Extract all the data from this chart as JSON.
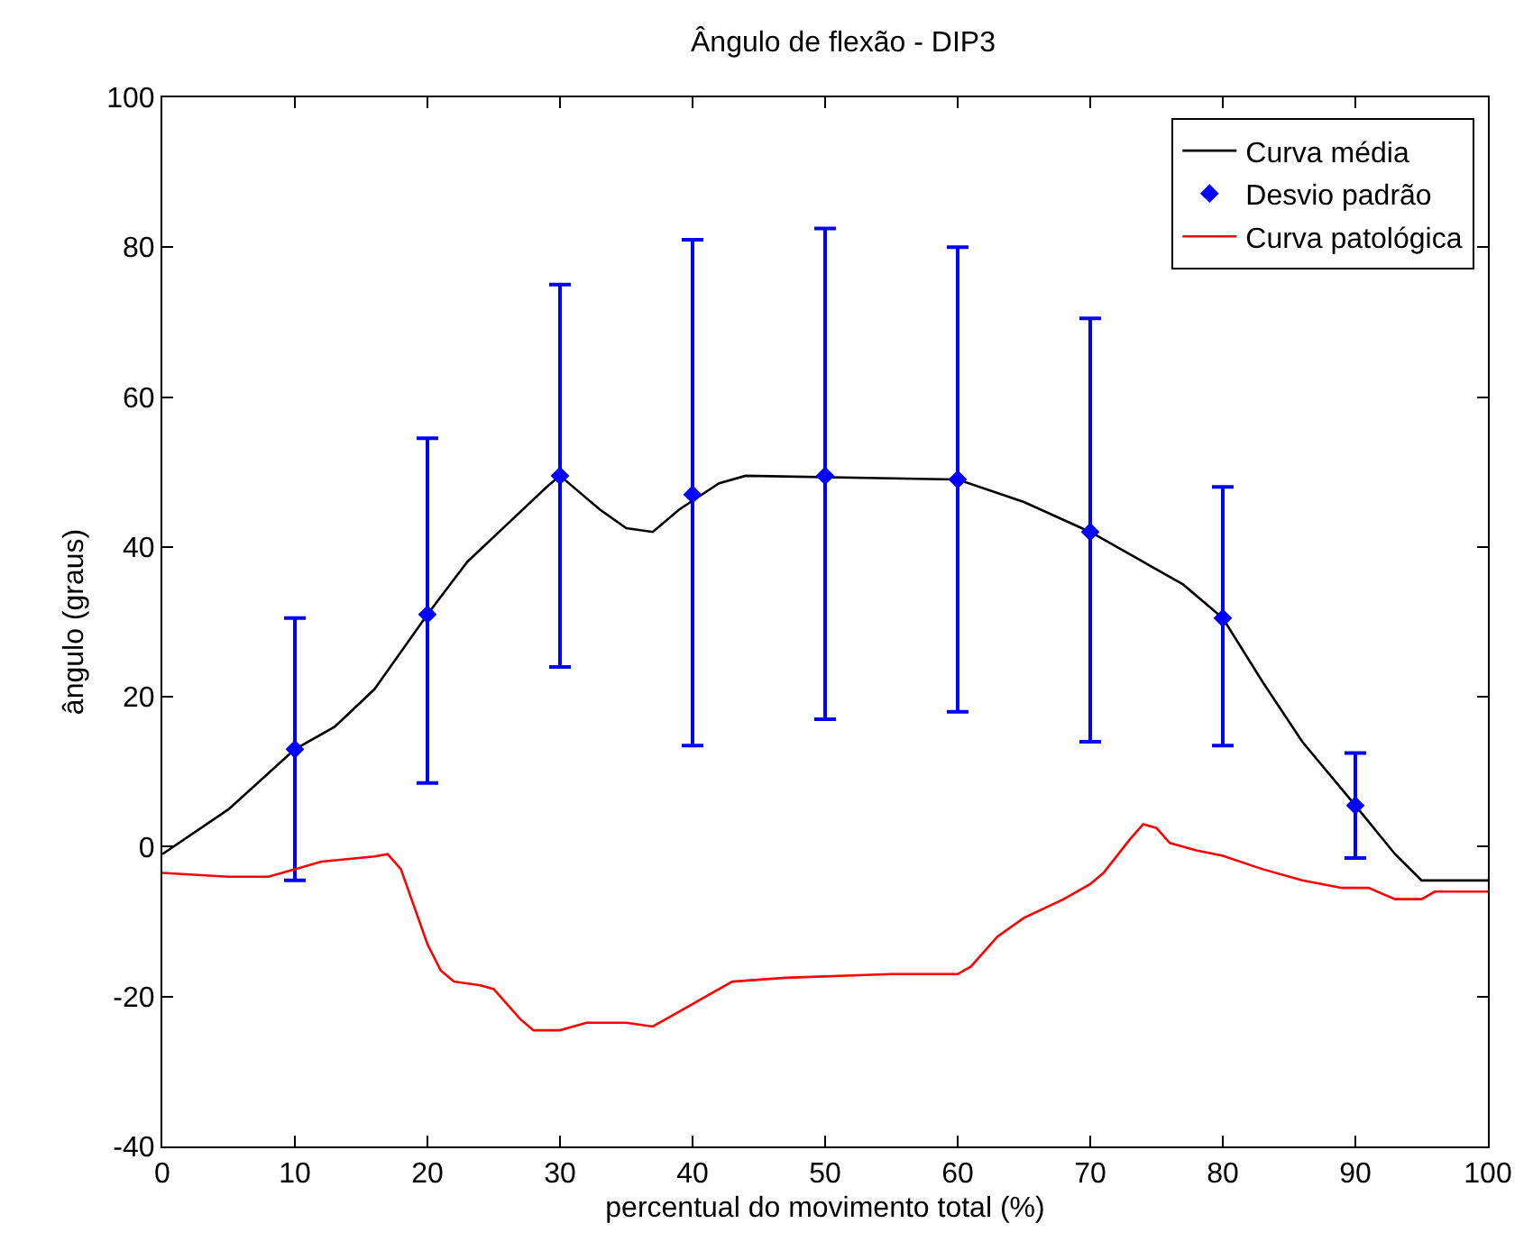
{
  "chart_data": {
    "type": "line",
    "title": "Ângulo de flexão - DIP3",
    "xlabel": "percentual do movimento total (%)",
    "ylabel": "ângulo (graus)",
    "xlim": [
      0,
      100
    ],
    "xticks": [
      0,
      10,
      20,
      30,
      40,
      50,
      60,
      70,
      80,
      90,
      100
    ],
    "ylim": [
      -40,
      100
    ],
    "yticks": [
      -40,
      -20,
      0,
      20,
      40,
      60,
      80,
      100
    ],
    "legend": "top right",
    "series": [
      {
        "name": "Curva média",
        "marker": "none",
        "color": "#000000",
        "x": [
          0,
          5,
          10,
          13,
          16,
          20,
          23,
          26,
          29,
          30,
          33,
          35,
          37,
          39,
          42,
          44,
          60,
          65,
          70,
          74,
          77,
          80,
          83,
          86,
          90,
          93,
          95,
          100
        ],
        "values": [
          -1,
          5,
          13,
          16,
          21,
          31,
          38,
          43,
          48,
          49.5,
          45,
          42.5,
          42,
          45,
          48.5,
          49.5,
          49,
          46,
          42,
          38,
          35,
          30.5,
          22,
          14,
          5.5,
          -1,
          -4.5,
          -4.5
        ]
      },
      {
        "name": "Desvio padrão",
        "type": "scatter",
        "marker": "diamond",
        "color": "#0000ff",
        "x": [
          10,
          20,
          30,
          40,
          50,
          60,
          70,
          80,
          90
        ],
        "values": [
          13,
          31,
          49.5,
          47,
          49.5,
          49,
          42,
          30.5,
          5.5
        ],
        "errors": [
          [
            -4.5,
            30.5
          ],
          [
            8.5,
            54.5
          ],
          [
            24,
            75
          ],
          [
            13.5,
            81
          ],
          [
            17,
            82.5
          ],
          [
            18,
            80
          ],
          [
            14,
            70.5
          ],
          [
            13.5,
            48
          ],
          [
            -1.5,
            12.5
          ]
        ]
      },
      {
        "name": "Curva patológica",
        "marker": "none",
        "color": "#ff0000",
        "x": [
          0,
          5,
          8,
          10,
          12,
          16,
          17,
          18,
          19,
          20,
          21,
          22,
          24,
          25,
          27,
          28,
          30,
          32,
          35,
          37,
          39,
          41,
          43,
          47,
          55,
          60,
          61,
          63,
          65,
          68,
          70,
          71,
          73,
          74,
          75,
          76,
          78,
          80,
          83,
          86,
          89,
          91,
          93,
          95,
          96,
          100
        ],
        "values": [
          -3.5,
          -4,
          -4,
          -3,
          -2,
          -1.3,
          -1,
          -3,
          -8,
          -13,
          -16.5,
          -18,
          -18.5,
          -19,
          -23,
          -24.5,
          -24.5,
          -23.5,
          -23.5,
          -24,
          -22,
          -20,
          -18,
          -17.5,
          -17,
          -17,
          -16,
          -12,
          -9.5,
          -7,
          -5,
          -3.5,
          1,
          3,
          2.5,
          0.5,
          -0.5,
          -1.2,
          -3,
          -4.5,
          -5.5,
          -5.5,
          -7,
          -7,
          -6,
          -6
        ]
      }
    ]
  }
}
